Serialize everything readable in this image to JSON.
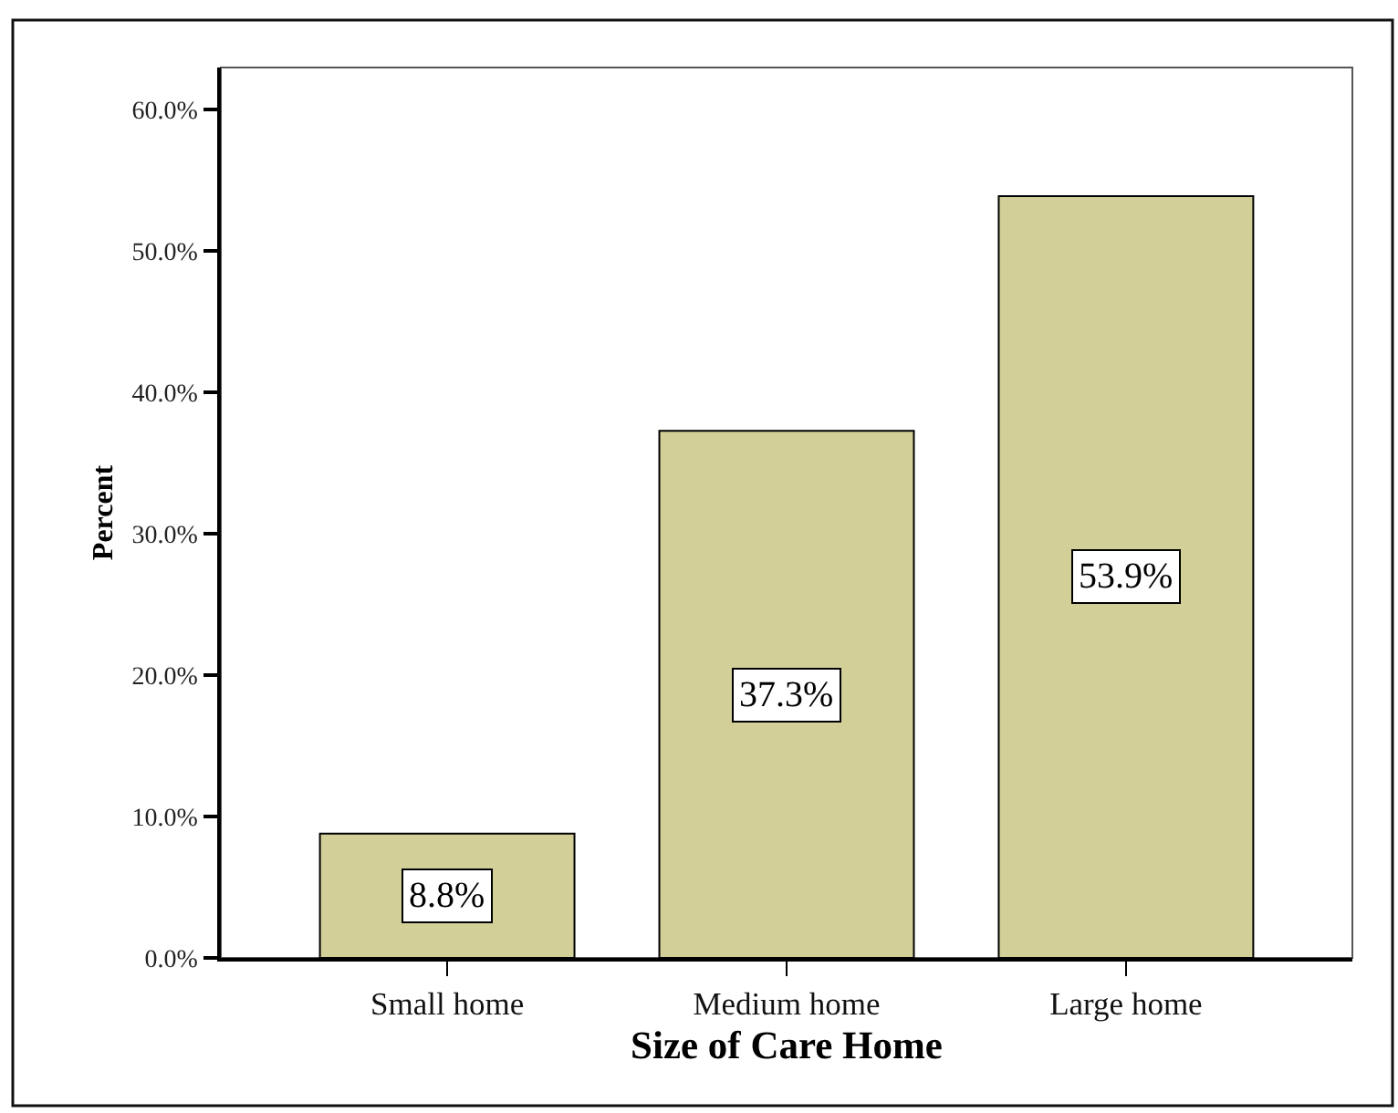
{
  "chart_data": {
    "type": "bar",
    "xlabel": "Size of Care Home",
    "ylabel": "Percent",
    "categories": [
      "Small home",
      "Medium home",
      "Large home"
    ],
    "values": [
      8.8,
      37.3,
      53.9
    ],
    "value_labels": [
      "8.8%",
      "37.3%",
      "53.9%"
    ],
    "color": "#d3cf98",
    "ylim": [
      0,
      63
    ],
    "yticks": [
      {
        "value": 0,
        "label": "0.0%"
      },
      {
        "value": 10,
        "label": "10.0%"
      },
      {
        "value": 20,
        "label": "20.0%"
      },
      {
        "value": 30,
        "label": "30.0%"
      },
      {
        "value": 40,
        "label": "40.0%"
      },
      {
        "value": 50,
        "label": "50.0%"
      },
      {
        "value": 60,
        "label": "60.0%"
      }
    ]
  }
}
